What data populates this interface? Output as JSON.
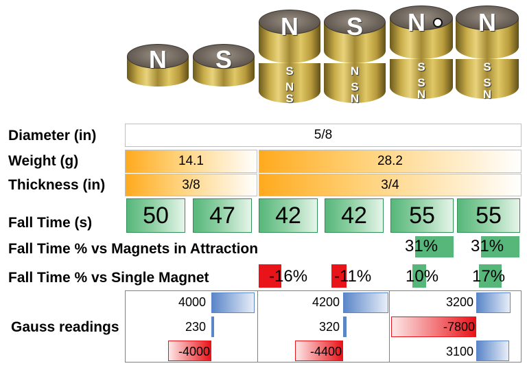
{
  "magnets": [
    {
      "id": "m1",
      "top": "N",
      "stack": []
    },
    {
      "id": "m2",
      "top": "S",
      "stack": []
    },
    {
      "id": "m3",
      "top": "N",
      "stack": [
        "S",
        "N",
        "S"
      ]
    },
    {
      "id": "m4",
      "top": "S",
      "stack": [
        "N",
        "S",
        "N"
      ]
    },
    {
      "id": "m5",
      "top": "N",
      "stack": [
        "S",
        "S",
        "N"
      ],
      "dot": true
    },
    {
      "id": "m6",
      "top": "N",
      "stack": [
        "S",
        "S",
        "N"
      ]
    }
  ],
  "labels": {
    "diameter": "Diameter (in)",
    "weight": "Weight (g)",
    "thickness": "Thickness (in)",
    "fall_time": "Fall Time (s)",
    "pct_attraction": "Fall Time % vs Magnets in Attraction",
    "pct_single": "Fall Time % vs Single Magnet",
    "gauss": "Gauss readings"
  },
  "diameter": "5/8",
  "weight": {
    "single": "14.1",
    "double": "28.2"
  },
  "thickness": {
    "single": "3/8",
    "double": "3/4"
  },
  "fall_times": [
    "50",
    "47",
    "42",
    "42",
    "55",
    "55"
  ],
  "pct_attraction": [
    {
      "text": "31%",
      "value": 31
    },
    {
      "text": "31%",
      "value": 31
    }
  ],
  "pct_single": [
    {
      "text": "-16%",
      "value": -16
    },
    {
      "text": "-11%",
      "value": -11
    },
    {
      "text": "10%",
      "value": 10
    },
    {
      "text": "17%",
      "value": 17
    }
  ],
  "gauss": [
    [
      {
        "text": "4000",
        "value": 4000
      },
      {
        "text": "230",
        "value": 230
      },
      {
        "text": "-4000",
        "value": -4000
      }
    ],
    [
      {
        "text": "4200",
        "value": 4200
      },
      {
        "text": "320",
        "value": 320
      },
      {
        "text": "-4400",
        "value": -4400
      }
    ],
    [
      {
        "text": "3200",
        "value": 3200
      },
      {
        "text": "-7800",
        "value": -7800
      },
      {
        "text": "3100",
        "value": 3100
      }
    ]
  ],
  "colors": {
    "positive_bar": "#5a86c8",
    "negative_bar": "#e8141a",
    "green": "#57b77a",
    "orange": "#ffaa1e",
    "pct_red": "#e8141a",
    "pct_green": "#57b77a"
  }
}
